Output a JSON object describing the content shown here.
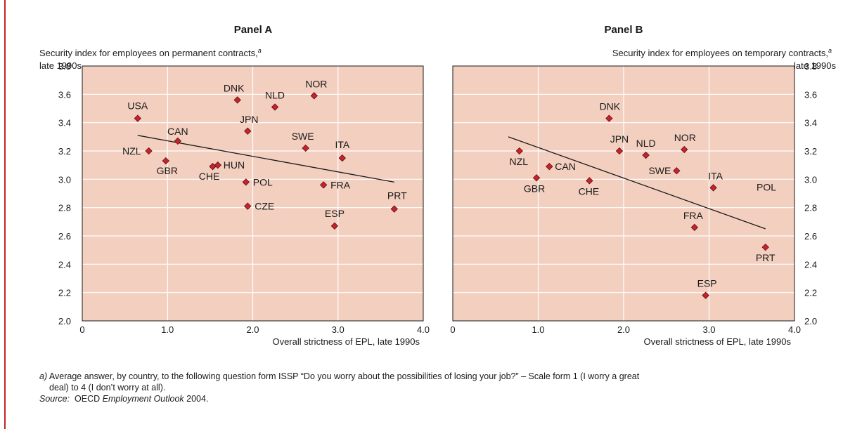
{
  "colors": {
    "plot_bg": "#f3cfc0",
    "grid": "#ffffff",
    "marker": "#c8232c",
    "marker_edge": "#5a0f12",
    "line": "#1a1a1a",
    "left_rule": "#c8232c"
  },
  "chart_data": [
    {
      "type": "scatter",
      "title": "Panel A",
      "ylabel": [
        "Security index for employees on permanent contracts,",
        "late 1990s"
      ],
      "ylabel_superscript": "a",
      "xlabel": "Overall strictness of EPL, late 1990s",
      "xlim": [
        0,
        4
      ],
      "ylim": [
        2.0,
        3.8
      ],
      "xticks": [
        "0",
        "1.0",
        "2.0",
        "3.0",
        "4.0"
      ],
      "yticks": [
        "2.0",
        "2.2",
        "2.4",
        "2.6",
        "2.8",
        "3.0",
        "3.2",
        "3.4",
        "3.6",
        "3.8"
      ],
      "y_axis_side": "left",
      "grid": true,
      "points": [
        {
          "label": "USA",
          "x": 0.65,
          "y": 3.43
        },
        {
          "label": "NZL",
          "x": 0.78,
          "y": 3.2
        },
        {
          "label": "GBR",
          "x": 0.98,
          "y": 3.13
        },
        {
          "label": "CAN",
          "x": 1.12,
          "y": 3.27
        },
        {
          "label": "CHE",
          "x": 1.53,
          "y": 3.09
        },
        {
          "label": "HUN",
          "x": 1.59,
          "y": 3.1
        },
        {
          "label": "DNK",
          "x": 1.82,
          "y": 3.56
        },
        {
          "label": "JPN",
          "x": 1.94,
          "y": 3.34
        },
        {
          "label": "POL",
          "x": 1.92,
          "y": 2.98
        },
        {
          "label": "CZE",
          "x": 1.94,
          "y": 2.81
        },
        {
          "label": "NLD",
          "x": 2.26,
          "y": 3.51
        },
        {
          "label": "SWE",
          "x": 2.62,
          "y": 3.22
        },
        {
          "label": "NOR",
          "x": 2.72,
          "y": 3.59
        },
        {
          "label": "FRA",
          "x": 2.83,
          "y": 2.96
        },
        {
          "label": "ESP",
          "x": 2.96,
          "y": 2.67
        },
        {
          "label": "ITA",
          "x": 3.05,
          "y": 3.15
        },
        {
          "label": "PRT",
          "x": 3.66,
          "y": 2.79
        }
      ],
      "trendline": {
        "x": [
          0.65,
          3.66
        ],
        "y": [
          3.31,
          2.98
        ]
      }
    },
    {
      "type": "scatter",
      "title": "Panel B",
      "ylabel": [
        "Security index for employees on temporary contracts,",
        "late 1990s"
      ],
      "ylabel_superscript": "a",
      "xlabel": "Overall strictness of EPL, late 1990s",
      "xlim": [
        0,
        4
      ],
      "ylim": [
        2.0,
        3.8
      ],
      "xticks": [
        "0",
        "1.0",
        "2.0",
        "3.0",
        "4.0"
      ],
      "yticks": [
        "2.0",
        "2.2",
        "2.4",
        "2.6",
        "2.8",
        "3.0",
        "3.2",
        "3.4",
        "3.6",
        "3.8"
      ],
      "y_axis_side": "right",
      "grid": true,
      "points": [
        {
          "label": "NZL",
          "x": 0.78,
          "y": 3.2
        },
        {
          "label": "GBR",
          "x": 0.98,
          "y": 3.01
        },
        {
          "label": "CAN",
          "x": 1.13,
          "y": 3.09
        },
        {
          "label": "CHE",
          "x": 1.6,
          "y": 2.99
        },
        {
          "label": "DNK",
          "x": 1.83,
          "y": 3.43
        },
        {
          "label": "JPN",
          "x": 1.95,
          "y": 3.2
        },
        {
          "label": "NLD",
          "x": 2.26,
          "y": 3.17
        },
        {
          "label": "SWE",
          "x": 2.62,
          "y": 3.06
        },
        {
          "label": "NOR",
          "x": 2.71,
          "y": 3.21
        },
        {
          "label": "FRA",
          "x": 2.83,
          "y": 2.66
        },
        {
          "label": "ESP",
          "x": 2.96,
          "y": 2.18
        },
        {
          "label": "ITA",
          "x": 3.05,
          "y": 2.94
        },
        {
          "label": "PRT",
          "x": 3.66,
          "y": 2.52
        },
        {
          "label": "POL",
          "x": null,
          "y": null
        }
      ],
      "trendline": {
        "x": [
          0.65,
          3.66
        ],
        "y": [
          3.3,
          2.65
        ]
      }
    }
  ],
  "notes": {
    "footnote_marker": "a)",
    "footnote_line1": "Average answer, by country, to the following question form ISSP “Do you worry about the possibilities of losing your job?” – Scale form 1 (I worry a great",
    "footnote_line2": "deal) to 4 (I don’t worry at all).",
    "source_label": "Source:",
    "source_pre": "OECD ",
    "source_title": "Employment Outlook",
    "source_post": " 2004."
  }
}
